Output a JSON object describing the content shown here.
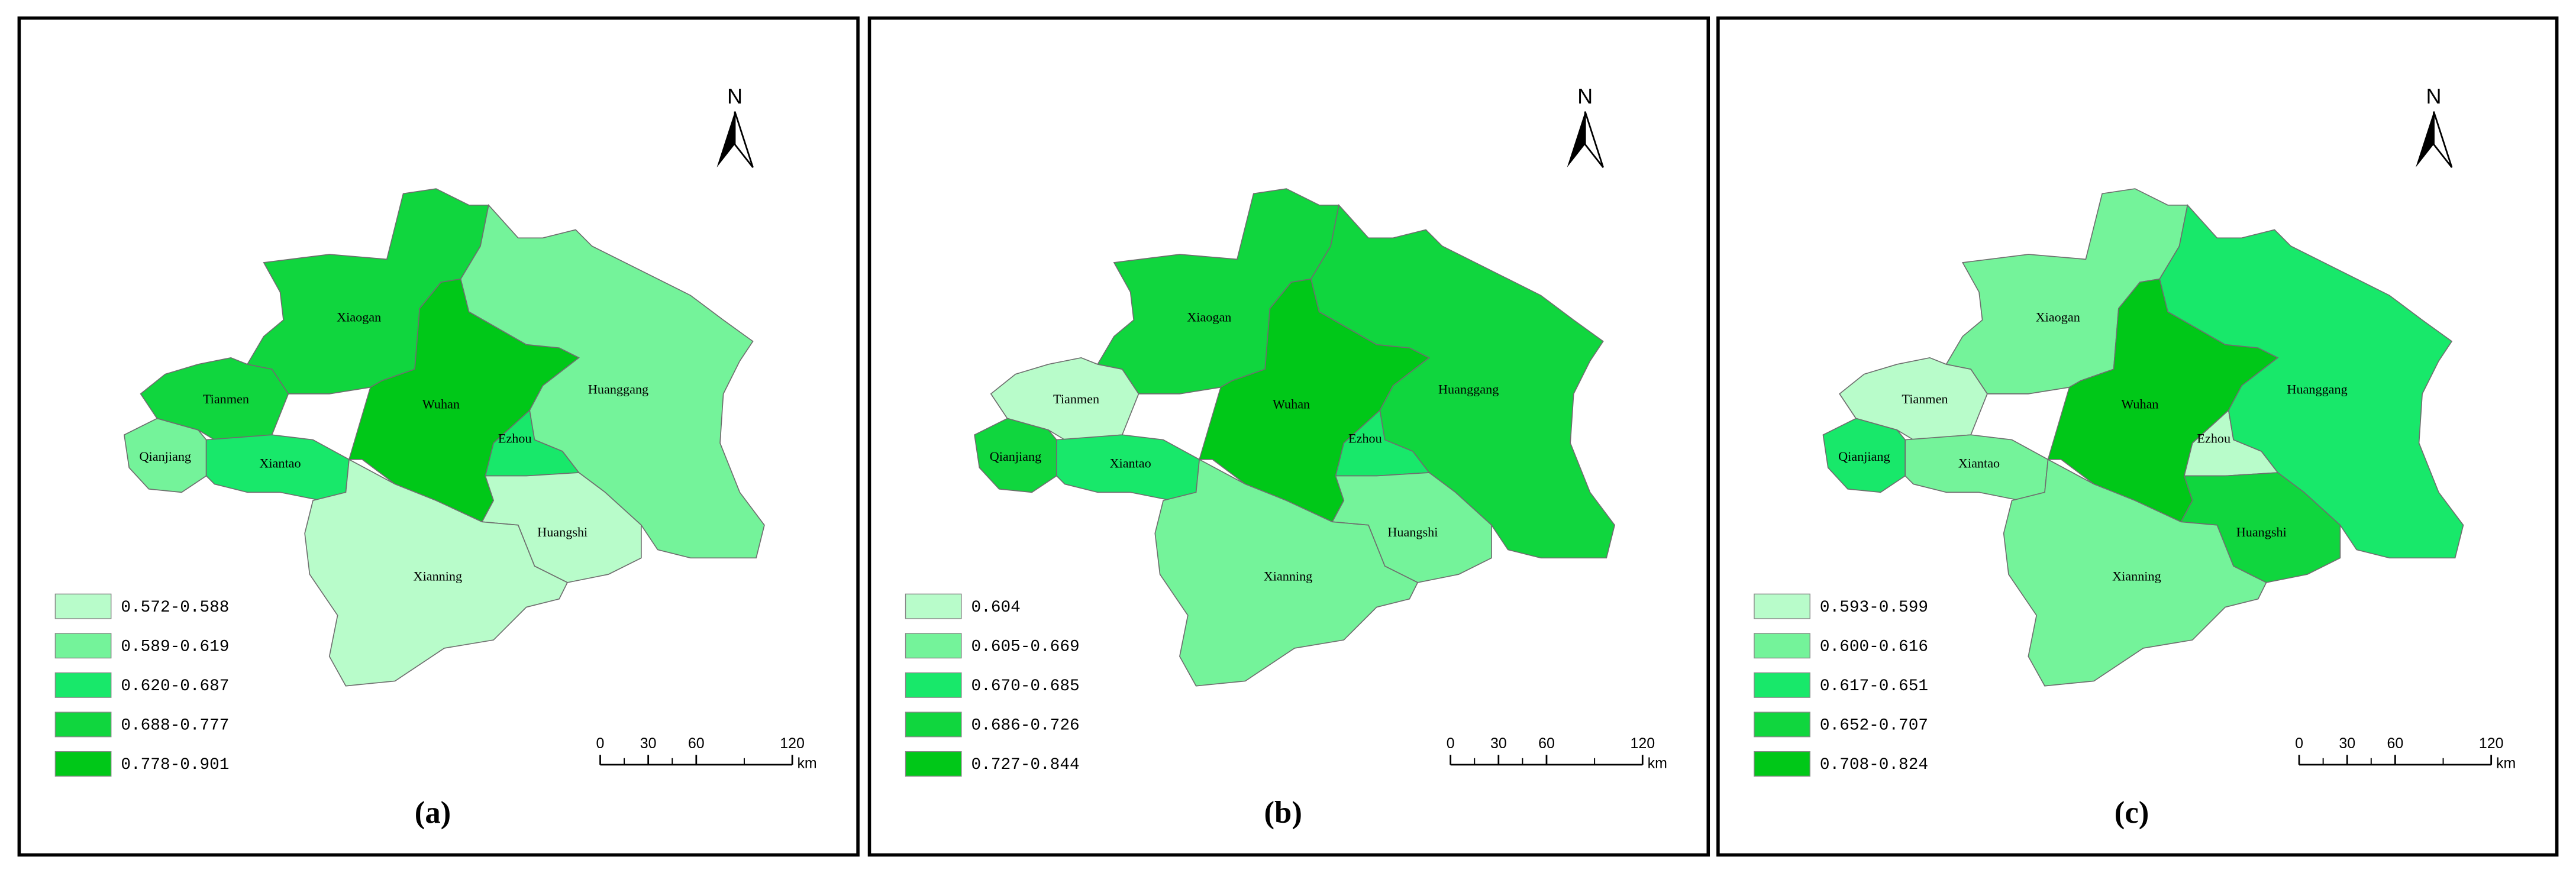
{
  "north": "N",
  "scale_bar": {
    "ticks": [
      0,
      30,
      60,
      120
    ],
    "unit": "km"
  },
  "panels": [
    {
      "label": "(a)",
      "legend": [
        {
          "label": "0.572-0.588",
          "color": "#b8fcca"
        },
        {
          "label": "0.589-0.619",
          "color": "#74f39a"
        },
        {
          "label": "0.620-0.687",
          "color": "#18e86a"
        },
        {
          "label": "0.688-0.777",
          "color": "#10d63e"
        },
        {
          "label": "0.778-0.901",
          "color": "#00c818"
        }
      ],
      "regions": [
        {
          "name": "Xiaogan",
          "color": "#10d63e"
        },
        {
          "name": "Tianmen",
          "color": "#10d63e"
        },
        {
          "name": "Qianjiang",
          "color": "#74f39a"
        },
        {
          "name": "Xiantao",
          "color": "#18e86a"
        },
        {
          "name": "Wuhan",
          "color": "#00c818"
        },
        {
          "name": "Ezhou",
          "color": "#18e86a"
        },
        {
          "name": "Huanggang",
          "color": "#74f39a"
        },
        {
          "name": "Huangshi",
          "color": "#b8fcca"
        },
        {
          "name": "Xianning",
          "color": "#b8fcca"
        }
      ]
    },
    {
      "label": "(b)",
      "legend": [
        {
          "label": "0.604",
          "color": "#b8fcca"
        },
        {
          "label": "0.605-0.669",
          "color": "#74f39a"
        },
        {
          "label": "0.670-0.685",
          "color": "#18e86a"
        },
        {
          "label": "0.686-0.726",
          "color": "#10d63e"
        },
        {
          "label": "0.727-0.844",
          "color": "#00c818"
        }
      ],
      "regions": [
        {
          "name": "Xiaogan",
          "color": "#10d63e"
        },
        {
          "name": "Tianmen",
          "color": "#b8fcca"
        },
        {
          "name": "Qianjiang",
          "color": "#10d63e"
        },
        {
          "name": "Xiantao",
          "color": "#18e86a"
        },
        {
          "name": "Wuhan",
          "color": "#00c818"
        },
        {
          "name": "Ezhou",
          "color": "#18e86a"
        },
        {
          "name": "Huanggang",
          "color": "#10d63e"
        },
        {
          "name": "Huangshi",
          "color": "#74f39a"
        },
        {
          "name": "Xianning",
          "color": "#74f39a"
        }
      ]
    },
    {
      "label": "(c)",
      "legend": [
        {
          "label": "0.593-0.599",
          "color": "#b8fcca"
        },
        {
          "label": "0.600-0.616",
          "color": "#74f39a"
        },
        {
          "label": "0.617-0.651",
          "color": "#18e86a"
        },
        {
          "label": "0.652-0.707",
          "color": "#10d63e"
        },
        {
          "label": "0.708-0.824",
          "color": "#00c818"
        }
      ],
      "regions": [
        {
          "name": "Xiaogan",
          "color": "#74f39a"
        },
        {
          "name": "Tianmen",
          "color": "#b8fcca"
        },
        {
          "name": "Qianjiang",
          "color": "#18e86a"
        },
        {
          "name": "Xiantao",
          "color": "#74f39a"
        },
        {
          "name": "Wuhan",
          "color": "#00c818"
        },
        {
          "name": "Ezhou",
          "color": "#b8fcca"
        },
        {
          "name": "Huanggang",
          "color": "#18e86a"
        },
        {
          "name": "Huangshi",
          "color": "#10d63e"
        },
        {
          "name": "Xianning",
          "color": "#74f39a"
        }
      ]
    }
  ]
}
